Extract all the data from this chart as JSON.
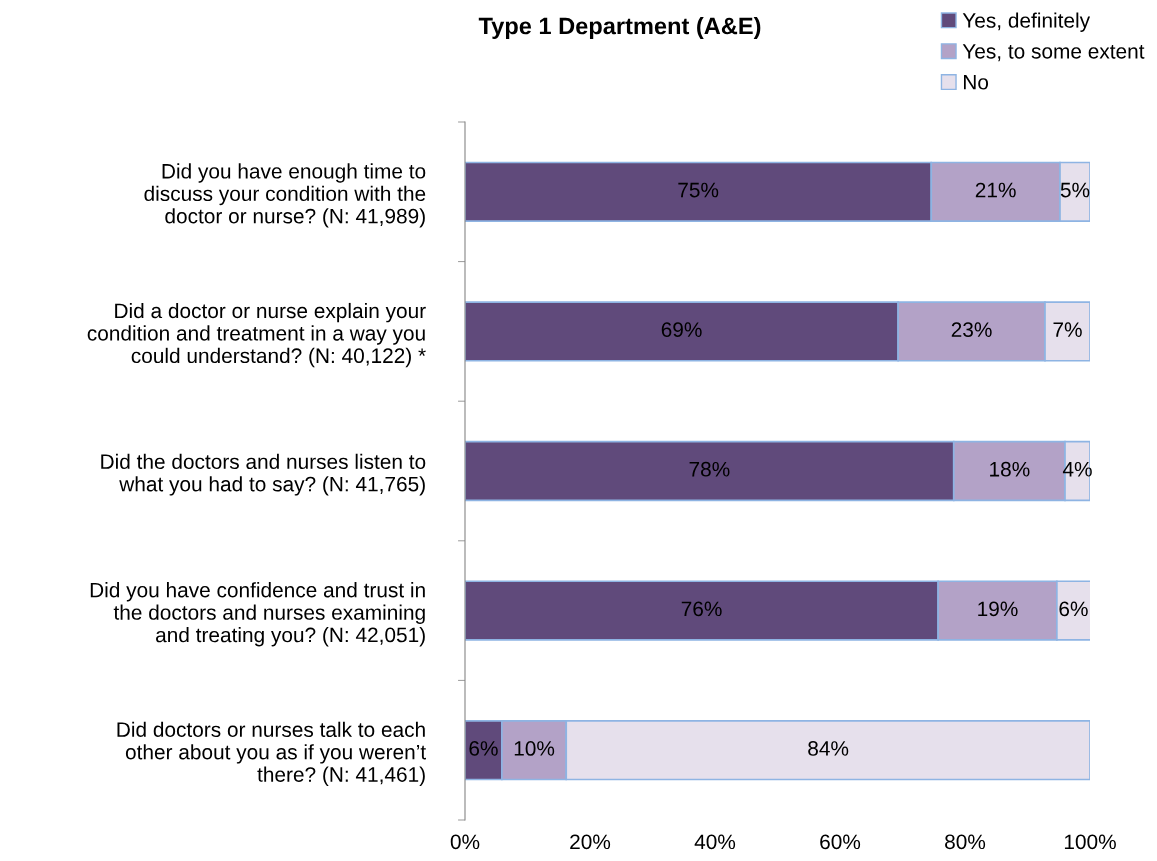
{
  "chart_data": {
    "type": "bar",
    "orientation": "horizontal",
    "stacked": true,
    "title": "Type 1 Department (A&E)",
    "categories": [
      "Did you have enough time to\ndiscuss your condition with the\ndoctor or nurse? (N: 41,989)",
      "Did a doctor or nurse explain your\ncondition and treatment in a way you\ncould understand? (N: 40,122) *",
      "Did the doctors and nurses listen to\nwhat you had to say? (N: 41,765)",
      "Did you have confidence and trust in\nthe doctors and nurses examining\nand treating you? (N: 42,051)",
      "Did doctors or nurses talk to each\nother about you as if you weren’t\nthere? (N: 41,461)"
    ],
    "series": [
      {
        "name": "Yes, definitely",
        "color": "#604a7b",
        "values": [
          74.6,
          69.3,
          78.2,
          75.7,
          5.9
        ],
        "value_labels": [
          "75%",
          "69%",
          "78%",
          "76%",
          "6%"
        ]
      },
      {
        "name": "Yes, to some extent",
        "color": "#b3a2c7",
        "values": [
          20.6,
          23.5,
          17.8,
          19.0,
          10.3
        ],
        "value_labels": [
          "21%",
          "23%",
          "18%",
          "19%",
          "10%"
        ]
      },
      {
        "name": "No",
        "color": "#e6e0ec",
        "values": [
          4.8,
          7.2,
          4.0,
          5.5,
          83.8
        ],
        "value_labels": [
          "5%",
          "7%",
          "4%",
          "6%",
          "84%"
        ]
      }
    ],
    "xlim": [
      0,
      100
    ],
    "xticks": [
      {
        "value": 0,
        "label": "0%"
      },
      {
        "value": 20,
        "label": "20%"
      },
      {
        "value": 40,
        "label": "40%"
      },
      {
        "value": 60,
        "label": "60%"
      },
      {
        "value": 80,
        "label": "80%"
      },
      {
        "value": 100,
        "label": "100%"
      }
    ],
    "grid": false,
    "legend": "top right"
  }
}
